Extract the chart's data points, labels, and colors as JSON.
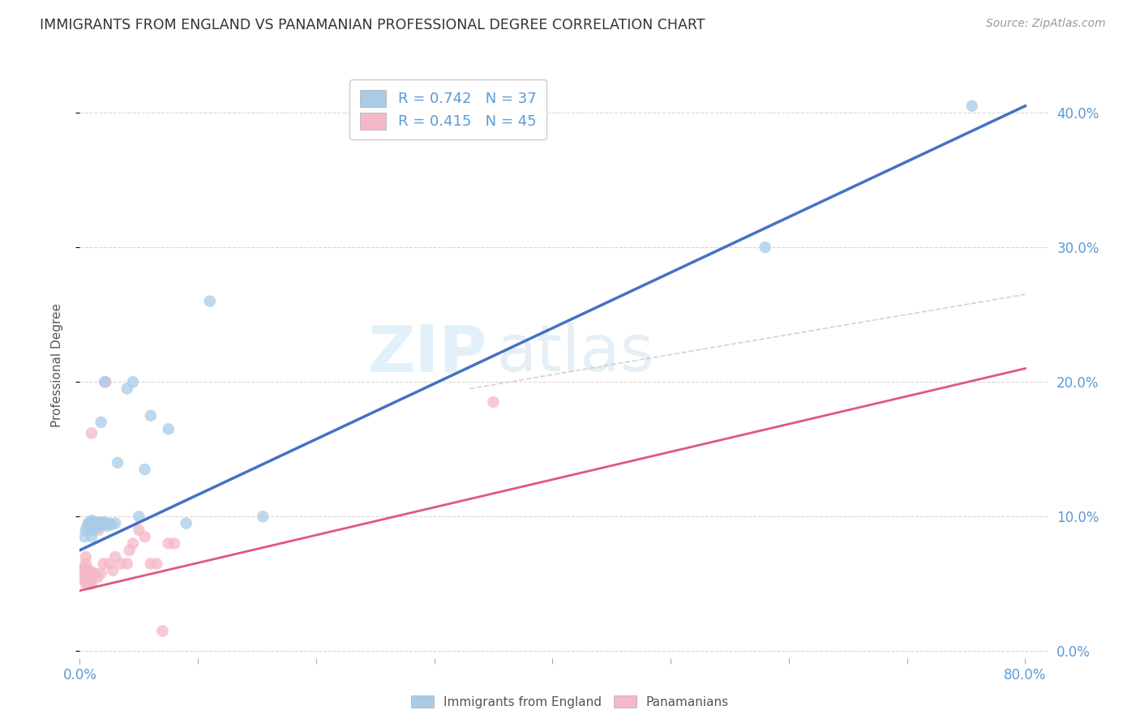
{
  "title": "IMMIGRANTS FROM ENGLAND VS PANAMANIAN PROFESSIONAL DEGREE CORRELATION CHART",
  "source": "Source: ZipAtlas.com",
  "ylabel": "Professional Degree",
  "xlim": [
    0.0,
    0.82
  ],
  "ylim": [
    -0.005,
    0.43
  ],
  "yticks": [
    0.0,
    0.1,
    0.2,
    0.3,
    0.4
  ],
  "xticks": [
    0.0,
    0.1,
    0.2,
    0.3,
    0.4,
    0.5,
    0.6,
    0.7,
    0.8
  ],
  "legend_r1": "R = 0.742",
  "legend_n1": "N = 37",
  "legend_r2": "R = 0.415",
  "legend_n2": "N = 45",
  "color_blue": "#a8cce8",
  "color_pink": "#f5b8c8",
  "color_blue_line": "#4472c4",
  "color_pink_line": "#e05878",
  "color_gray_line": "#c8c8c8",
  "watermark_zip": "ZIP",
  "watermark_atlas": "atlas",
  "blue_line_x0": 0.0,
  "blue_line_y0": 0.075,
  "blue_line_x1": 0.8,
  "blue_line_y1": 0.405,
  "pink_line_x0": 0.0,
  "pink_line_y0": 0.045,
  "pink_line_x1": 0.8,
  "pink_line_y1": 0.21,
  "gray_line_x0": 0.33,
  "gray_line_y0": 0.195,
  "gray_line_x1": 0.8,
  "gray_line_y1": 0.265,
  "blue_scatter_x": [
    0.004,
    0.005,
    0.006,
    0.007,
    0.008,
    0.009,
    0.01,
    0.01,
    0.01,
    0.01,
    0.012,
    0.013,
    0.014,
    0.015,
    0.016,
    0.017,
    0.018,
    0.019,
    0.02,
    0.021,
    0.022,
    0.023,
    0.025,
    0.027,
    0.03,
    0.032,
    0.04,
    0.045,
    0.05,
    0.055,
    0.06,
    0.075,
    0.09,
    0.11,
    0.155,
    0.58,
    0.755
  ],
  "blue_scatter_y": [
    0.085,
    0.09,
    0.092,
    0.095,
    0.095,
    0.096,
    0.085,
    0.09,
    0.093,
    0.097,
    0.096,
    0.095,
    0.095,
    0.092,
    0.094,
    0.096,
    0.17,
    0.094,
    0.096,
    0.2,
    0.095,
    0.093,
    0.095,
    0.094,
    0.095,
    0.14,
    0.195,
    0.2,
    0.1,
    0.135,
    0.175,
    0.165,
    0.095,
    0.26,
    0.1,
    0.3,
    0.405
  ],
  "pink_scatter_x": [
    0.002,
    0.003,
    0.003,
    0.004,
    0.004,
    0.005,
    0.005,
    0.005,
    0.005,
    0.005,
    0.005,
    0.005,
    0.005,
    0.006,
    0.006,
    0.007,
    0.008,
    0.008,
    0.009,
    0.009,
    0.01,
    0.01,
    0.01,
    0.01,
    0.012,
    0.015,
    0.016,
    0.018,
    0.02,
    0.022,
    0.025,
    0.028,
    0.03,
    0.035,
    0.04,
    0.042,
    0.045,
    0.05,
    0.055,
    0.06,
    0.065,
    0.07,
    0.075,
    0.08,
    0.35
  ],
  "pink_scatter_y": [
    0.055,
    0.058,
    0.06,
    0.055,
    0.062,
    0.05,
    0.052,
    0.055,
    0.058,
    0.06,
    0.062,
    0.065,
    0.07,
    0.052,
    0.055,
    0.058,
    0.05,
    0.06,
    0.052,
    0.055,
    0.05,
    0.055,
    0.058,
    0.162,
    0.058,
    0.055,
    0.09,
    0.058,
    0.065,
    0.2,
    0.065,
    0.06,
    0.07,
    0.065,
    0.065,
    0.075,
    0.08,
    0.09,
    0.085,
    0.065,
    0.065,
    0.015,
    0.08,
    0.08,
    0.185
  ]
}
